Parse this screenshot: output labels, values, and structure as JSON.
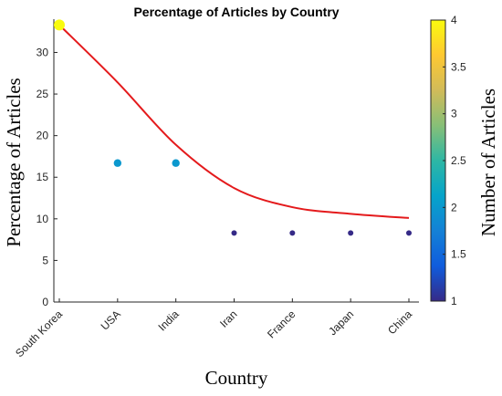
{
  "chart_data": {
    "type": "scatter",
    "title": "Percentage of Articles by Country",
    "xlabel": "Country",
    "ylabel": "Percentage of Articles",
    "categories": [
      "South Korea",
      "USA",
      "India",
      "Iran",
      "France",
      "Japan",
      "China"
    ],
    "values": [
      33.3,
      16.7,
      16.7,
      8.3,
      8.3,
      8.3,
      8.3
    ],
    "counts": [
      4,
      2,
      2,
      1,
      1,
      1,
      1
    ],
    "ylim": [
      0,
      34
    ],
    "yticks": [
      0,
      5,
      10,
      15,
      20,
      25,
      30
    ],
    "trend_line": {
      "color": "#e41a1c",
      "values": [
        33.3,
        26.4,
        18.9,
        13.7,
        11.4,
        10.6,
        10.1
      ]
    },
    "colorbar": {
      "label": "Number of Articles",
      "range": [
        1,
        4
      ],
      "ticks": [
        "1",
        "1.5",
        "2",
        "2.5",
        "3",
        "3.5",
        "4"
      ],
      "colormap": [
        "#352a87",
        "#0f5cdd",
        "#1481d6",
        "#06a4ca",
        "#2eb7a4",
        "#87bf77",
        "#d1bb59",
        "#fec832",
        "#f9fb0e"
      ]
    },
    "grid": false
  }
}
